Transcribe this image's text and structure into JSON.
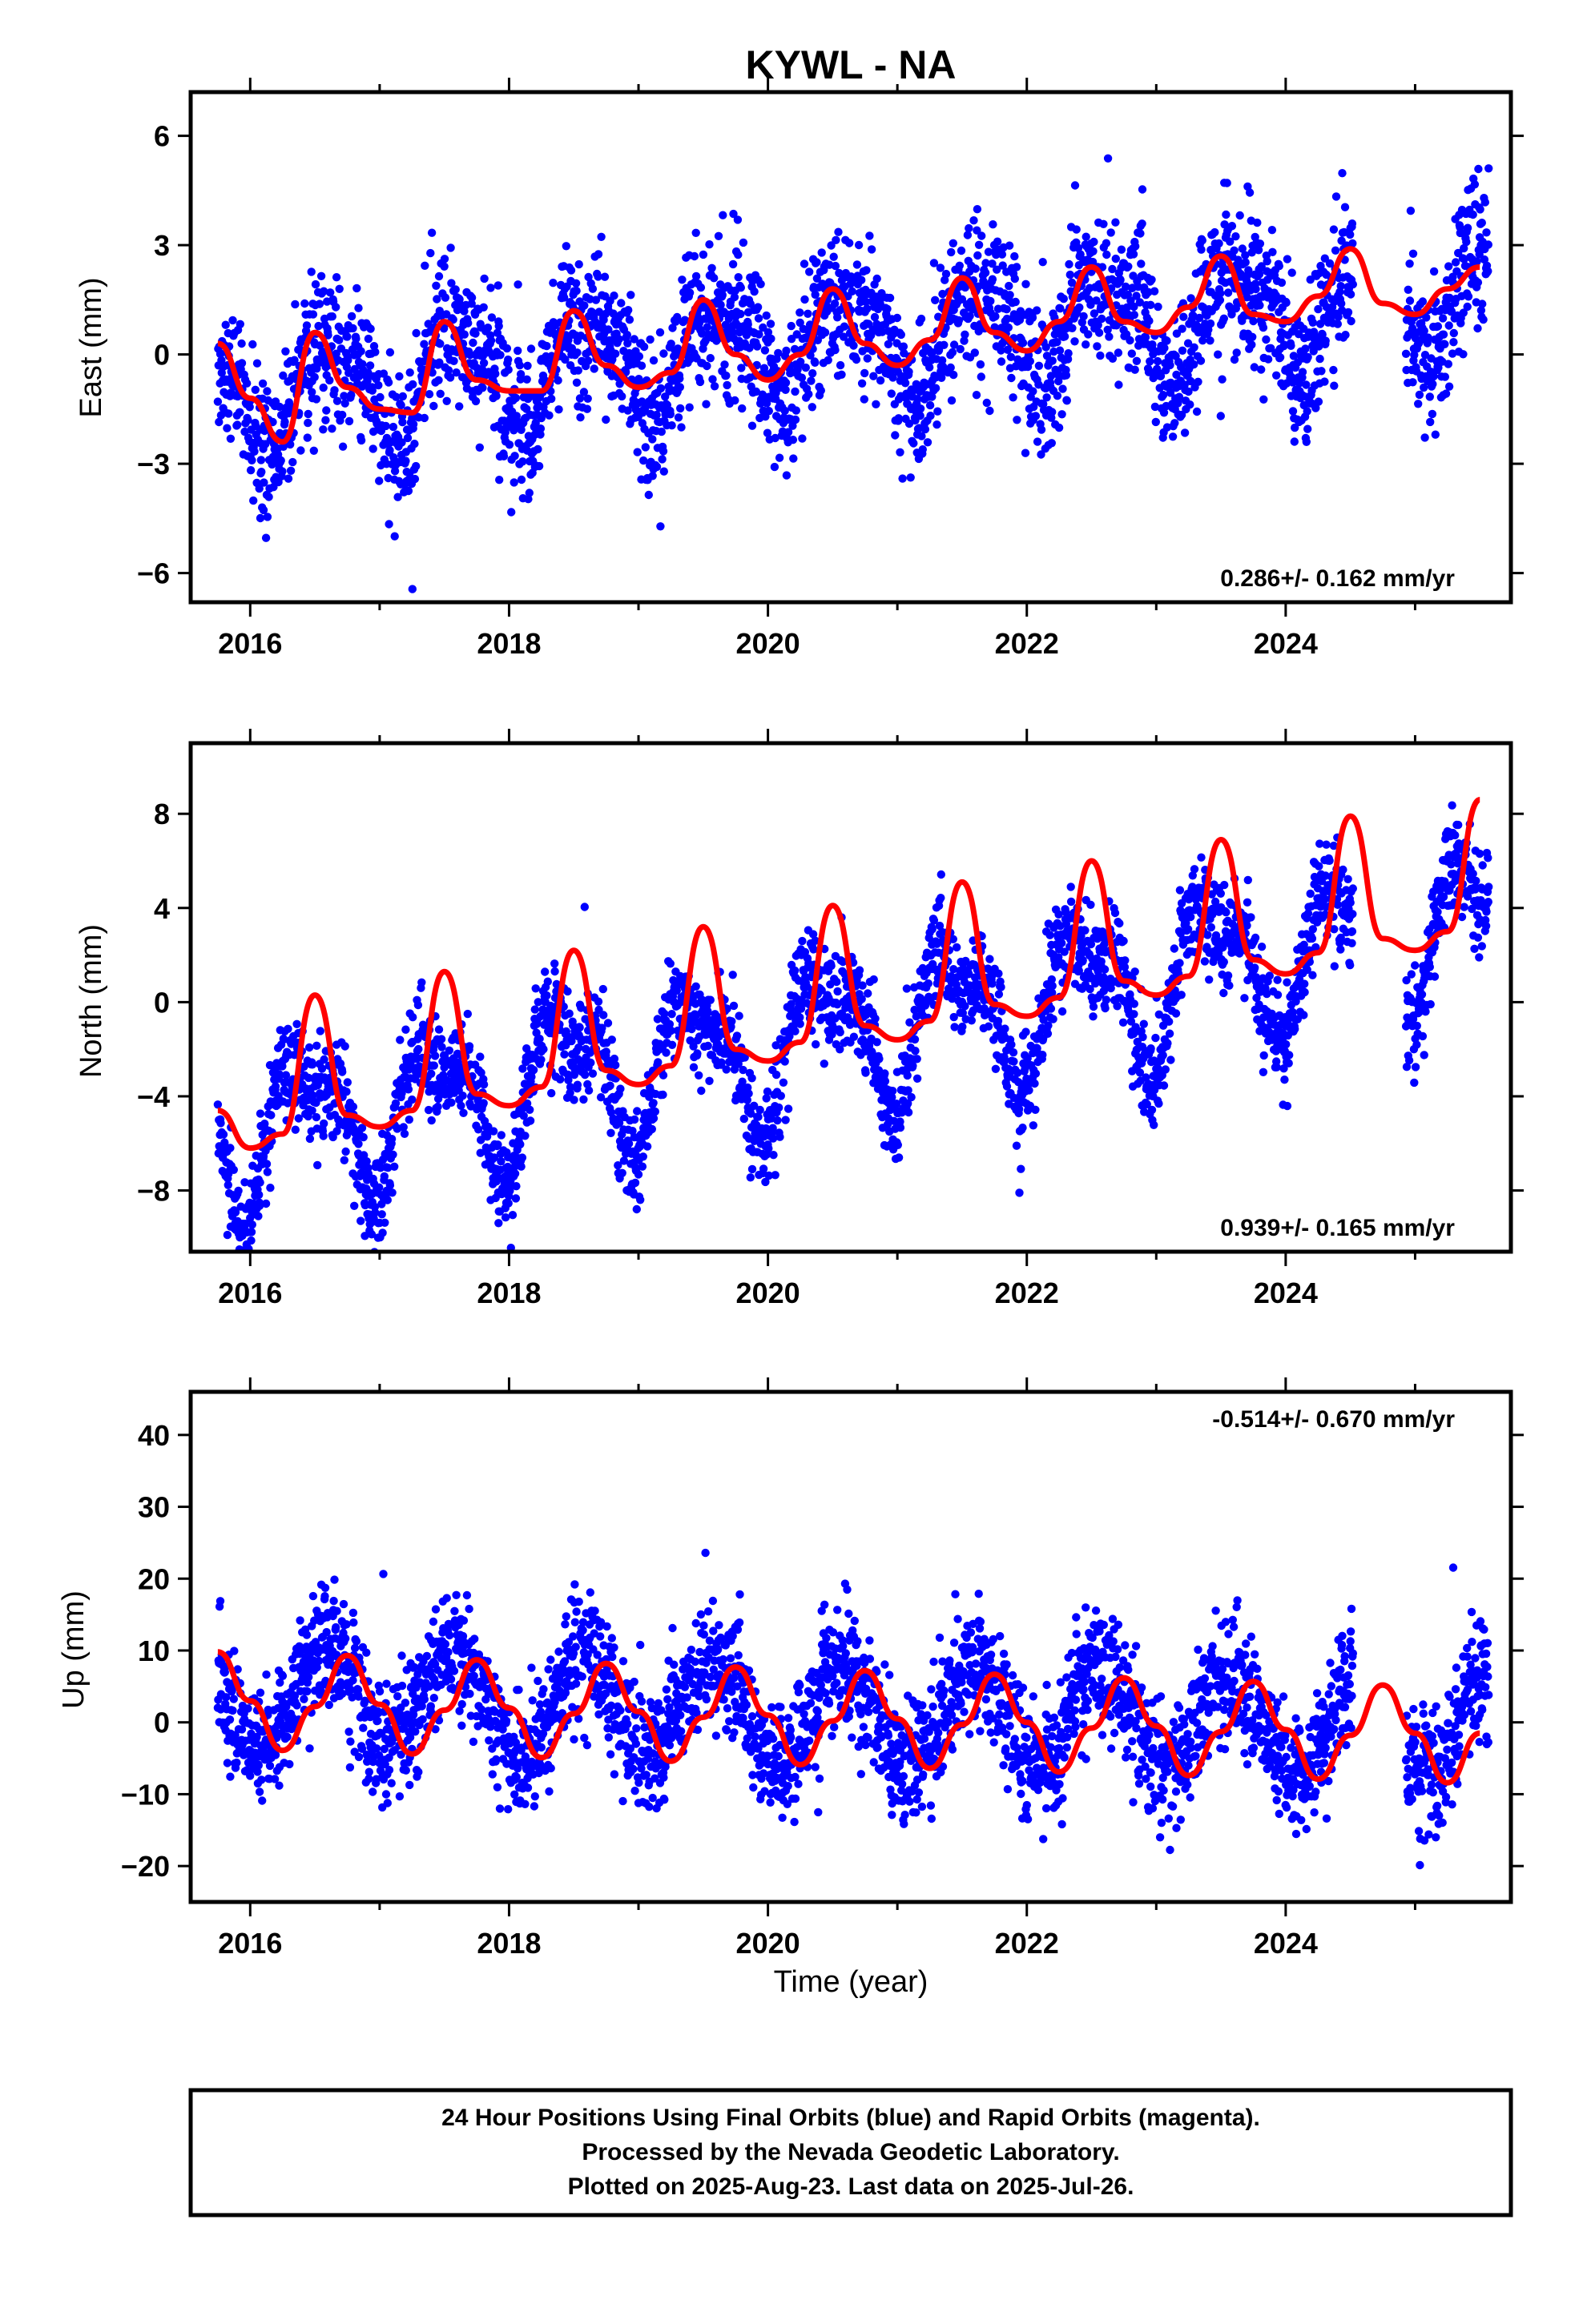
{
  "title": "KYWL - NA",
  "footer": {
    "line1": "24 Hour Positions Using Final Orbits (blue) and Rapid Orbits (magenta).",
    "line2": "Processed by the Nevada Geodetic Laboratory.",
    "line3": "Plotted on 2025-Aug-23. Last data on 2025-Jul-26."
  },
  "colors": {
    "points": "#0000ff",
    "fit": "#ff0000",
    "frame": "#000000"
  },
  "chart_data": [
    {
      "type": "scatter",
      "component": "east",
      "ylabel": "East (mm)",
      "xlabel": "",
      "xlim": [
        2015.54,
        2025.74
      ],
      "ylim": [
        -6.8,
        7.2
      ],
      "xticks": [
        2016,
        2018,
        2020,
        2022,
        2024
      ],
      "yticks": [
        -6,
        -3,
        0,
        3,
        6
      ],
      "rate_text": "0.286+/- 0.162 mm/yr",
      "rate_position": "bottom-right",
      "model": {
        "slope": 0.286,
        "ref_year": 2020.5,
        "intercept": 0.3,
        "annual_cos": -1.0,
        "annual_sin": -0.9,
        "semiannual_cos": 0.1,
        "semiannual_sin": -0.45,
        "scatter": 1.0
      },
      "series": [
        {
          "type": "line",
          "x": [
            2015.75,
            2016.0,
            2016.25,
            2016.5,
            2016.75,
            2017.0,
            2017.25,
            2017.5,
            2017.75,
            2018.0,
            2018.25,
            2018.5,
            2018.75,
            2019.0,
            2019.25,
            2019.5,
            2019.75,
            2020.0,
            2020.25,
            2020.5,
            2020.75,
            2021.0,
            2021.25,
            2021.5,
            2021.75,
            2022.0,
            2022.25,
            2022.5,
            2022.75,
            2023.0,
            2023.25,
            2023.5,
            2023.75,
            2024.0,
            2024.25,
            2024.5,
            2024.75,
            2025.0,
            2025.25,
            2025.5
          ],
          "y": [
            0.3,
            -1.2,
            -2.4,
            0.6,
            -0.9,
            -1.5,
            -1.6,
            0.9,
            -0.7,
            -1.0,
            -1.0,
            1.2,
            -0.3,
            -0.9,
            -0.5,
            1.5,
            0.0,
            -0.7,
            0.0,
            1.8,
            0.3,
            -0.3,
            0.4,
            2.1,
            0.6,
            0.1,
            0.9,
            2.4,
            0.9,
            0.6,
            1.3,
            2.7,
            1.1,
            0.9,
            1.6,
            2.9,
            1.4,
            1.1,
            1.8,
            2.4
          ]
        }
      ]
    },
    {
      "type": "scatter",
      "component": "north",
      "ylabel": "North (mm)",
      "xlabel": "",
      "xlim": [
        2015.54,
        2025.74
      ],
      "ylim": [
        -10.6,
        11.0
      ],
      "xticks": [
        2016,
        2018,
        2020,
        2022,
        2024
      ],
      "yticks": [
        -8,
        -4,
        0,
        4,
        8
      ],
      "rate_text": "0.939+/- 0.165 mm/yr",
      "rate_position": "bottom-right",
      "model": {
        "slope": 0.939,
        "ref_year": 2020.5,
        "intercept": -1.4,
        "annual_cos": -2.5,
        "annual_sin": 1.1,
        "semiannual_cos": -1.3,
        "semiannual_sin": 0.3,
        "scatter": 1.05
      },
      "series": [
        {
          "type": "line",
          "x": [
            2015.75,
            2016.0,
            2016.25,
            2016.5,
            2016.75,
            2017.0,
            2017.25,
            2017.5,
            2017.75,
            2018.0,
            2018.25,
            2018.5,
            2018.75,
            2019.0,
            2019.25,
            2019.5,
            2019.75,
            2020.0,
            2020.25,
            2020.5,
            2020.75,
            2021.0,
            2021.25,
            2021.5,
            2021.75,
            2022.0,
            2022.25,
            2022.5,
            2022.75,
            2023.0,
            2023.25,
            2023.5,
            2023.75,
            2024.0,
            2024.25,
            2024.5,
            2024.75,
            2025.0,
            2025.25,
            2025.5
          ],
          "y": [
            -4.6,
            -6.2,
            -5.6,
            0.3,
            -4.8,
            -5.3,
            -4.6,
            1.3,
            -3.9,
            -4.4,
            -3.6,
            2.2,
            -2.9,
            -3.5,
            -2.7,
            3.2,
            -2.0,
            -2.5,
            -1.7,
            4.1,
            -1.0,
            -1.6,
            -0.8,
            5.1,
            -0.1,
            -0.6,
            0.2,
            6.0,
            0.9,
            0.3,
            1.1,
            6.9,
            1.8,
            1.2,
            2.1,
            7.9,
            2.7,
            2.2,
            3.0,
            8.6
          ]
        }
      ]
    },
    {
      "type": "scatter",
      "component": "up",
      "ylabel": "Up (mm)",
      "xlabel": "Time (year)",
      "xlim": [
        2015.54,
        2025.74
      ],
      "ylim": [
        -25,
        46
      ],
      "xticks": [
        2016,
        2018,
        2020,
        2022,
        2024
      ],
      "yticks": [
        -20,
        -10,
        0,
        10,
        20,
        30,
        40
      ],
      "rate_text": "-0.514+/- 0.670 mm/yr",
      "rate_position": "top-right",
      "model": {
        "slope": -0.514,
        "ref_year": 2020.5,
        "intercept": 1.5,
        "annual_cos": -6.2,
        "annual_sin": -3.4,
        "semiannual_cos": 0.0,
        "semiannual_sin": 0.0,
        "scatter": 4.2
      },
      "series": [
        {
          "type": "line",
          "x": [
            2015.75,
            2016.0,
            2016.25,
            2016.5,
            2016.75,
            2017.0,
            2017.25,
            2017.5,
            2017.75,
            2018.0,
            2018.25,
            2018.5,
            2018.75,
            2019.0,
            2019.25,
            2019.5,
            2019.75,
            2020.0,
            2020.25,
            2020.5,
            2020.75,
            2021.0,
            2021.25,
            2021.5,
            2021.75,
            2022.0,
            2022.25,
            2022.5,
            2022.75,
            2023.0,
            2023.25,
            2023.5,
            2023.75,
            2024.0,
            2024.25,
            2024.5,
            2024.75,
            2025.0,
            2025.25,
            2025.5
          ],
          "y": [
            9.8,
            3.0,
            -3.9,
            2.2,
            9.3,
            2.5,
            -4.4,
            1.7,
            8.7,
            2.0,
            -4.9,
            1.2,
            8.2,
            1.5,
            -5.4,
            0.7,
            7.7,
            1.0,
            -5.9,
            0.2,
            7.2,
            0.5,
            -6.4,
            -0.3,
            6.7,
            0.0,
            -6.9,
            -0.8,
            6.2,
            -0.5,
            -7.4,
            -1.3,
            5.7,
            -1.0,
            -7.9,
            -1.8,
            5.2,
            -1.5,
            -8.4,
            -1.5
          ]
        }
      ]
    }
  ]
}
